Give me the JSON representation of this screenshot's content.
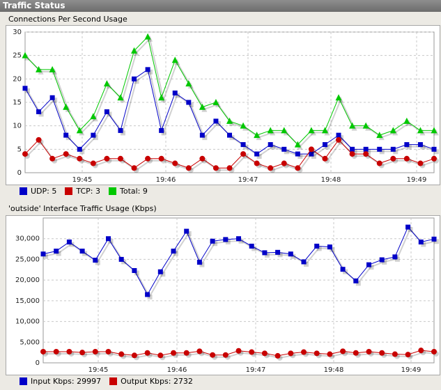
{
  "window": {
    "title": "Traffic Status"
  },
  "panels": [
    {
      "title": "Connections Per Second Usage",
      "legend": [
        {
          "label": "UDP:",
          "value": "5",
          "color": "#0000c8"
        },
        {
          "label": "TCP:",
          "value": "3",
          "color": "#c80000"
        },
        {
          "label": "Total:",
          "value": "9",
          "color": "#00c800"
        }
      ]
    },
    {
      "title": "'outside' Interface Traffic Usage (Kbps)",
      "legend": [
        {
          "label": "Input Kbps:",
          "value": "29997",
          "color": "#0000c8"
        },
        {
          "label": "Output Kbps:",
          "value": "2732",
          "color": "#c80000"
        }
      ]
    }
  ],
  "chart_data": [
    {
      "type": "line",
      "title": "Connections Per Second Usage",
      "x_ticks": [
        "19:45",
        "19:46",
        "19:47",
        "19:48",
        "19:49"
      ],
      "ylim": [
        0,
        30
      ],
      "y_ticks": [
        "0",
        "5",
        "10",
        "15",
        "20",
        "25",
        "30"
      ],
      "grid": true,
      "series": [
        {
          "name": "UDP",
          "color": "#0000c8",
          "marker": "square",
          "values": [
            18,
            13,
            16,
            8,
            5,
            8,
            13,
            9,
            20,
            22,
            9,
            17,
            15,
            8,
            11,
            8,
            6,
            4,
            6,
            5,
            4,
            4,
            6,
            8,
            5,
            5,
            5,
            5,
            6,
            6,
            5
          ]
        },
        {
          "name": "TCP",
          "color": "#c80000",
          "marker": "circle",
          "values": [
            4,
            7,
            3,
            4,
            3,
            2,
            3,
            3,
            1,
            3,
            3,
            2,
            1,
            3,
            1,
            1,
            4,
            2,
            1,
            2,
            1,
            5,
            3,
            7,
            4,
            4,
            2,
            3,
            3,
            2,
            3
          ]
        },
        {
          "name": "Total",
          "color": "#00c800",
          "marker": "triangle",
          "values": [
            25,
            22,
            22,
            14,
            9,
            12,
            19,
            16,
            26,
            29,
            16,
            24,
            19,
            14,
            15,
            11,
            10,
            8,
            9,
            9,
            6,
            9,
            9,
            16,
            10,
            10,
            8,
            9,
            11,
            9,
            9
          ]
        }
      ]
    },
    {
      "type": "line",
      "title": "'outside' Interface Traffic Usage (Kbps)",
      "x_ticks": [
        "19:45",
        "19:46",
        "19:47",
        "19:48",
        "19:49"
      ],
      "ylim": [
        0,
        35000
      ],
      "y_ticks": [
        "0",
        "5,000",
        "10,000",
        "15,000",
        "20,000",
        "25,000",
        "30,000"
      ],
      "grid": true,
      "series": [
        {
          "name": "Input Kbps",
          "color": "#0000c8",
          "marker": "square",
          "values": [
            26300,
            27000,
            29200,
            27000,
            24800,
            30000,
            25000,
            22300,
            16500,
            22000,
            27000,
            31800,
            24300,
            29400,
            29800,
            30000,
            28200,
            26600,
            26700,
            26300,
            24400,
            28200,
            28000,
            22600,
            19800,
            23700,
            24900,
            25600,
            32800,
            29200,
            29900
          ]
        },
        {
          "name": "Output Kbps",
          "color": "#c80000",
          "marker": "circle",
          "values": [
            2700,
            2700,
            2700,
            2500,
            2700,
            2700,
            2100,
            1800,
            2400,
            1800,
            2400,
            2400,
            2800,
            1900,
            1900,
            2900,
            2600,
            2300,
            1700,
            2300,
            2600,
            2300,
            2100,
            2800,
            2400,
            2700,
            2400,
            2100,
            2000,
            3000,
            2700
          ]
        }
      ]
    }
  ]
}
